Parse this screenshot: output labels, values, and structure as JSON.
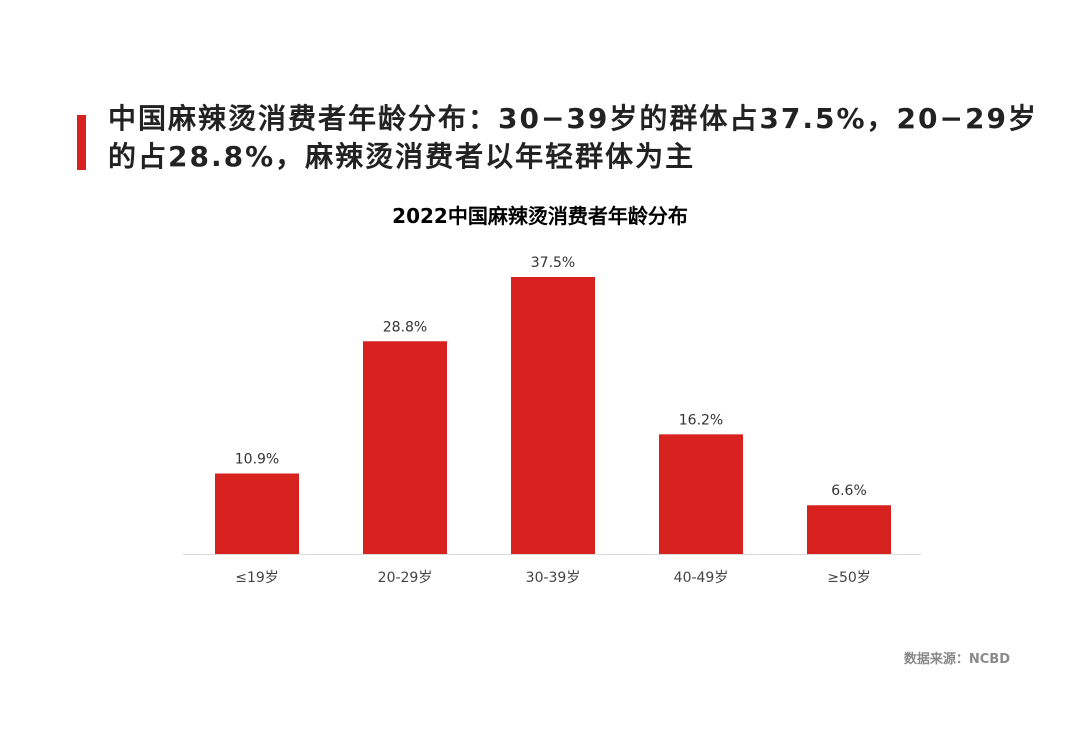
{
  "headline": "中国麻辣烫消费者年龄分布：30−39岁的群体占37.5%，20−29岁的占28.8%，麻辣烫消费者以年轻群体为主",
  "source": "数据来源：NCBD",
  "colors": {
    "accent": "#d7221f",
    "bar": "#d7221f",
    "axis": "#d9d9d9"
  },
  "chart_data": {
    "type": "bar",
    "title": "2022中国麻辣烫消费者年龄分布",
    "categories": [
      "≤19岁",
      "20-29岁",
      "30-39岁",
      "40-49岁",
      "≥50岁"
    ],
    "values": [
      10.9,
      28.8,
      37.5,
      16.2,
      6.6
    ],
    "data_labels": [
      "10.9%",
      "28.8%",
      "37.5%",
      "16.2%",
      "6.6%"
    ],
    "unit": "%",
    "ylim": [
      0,
      37.5
    ],
    "grid": false,
    "legend": "none",
    "xlabel": "",
    "ylabel": ""
  }
}
